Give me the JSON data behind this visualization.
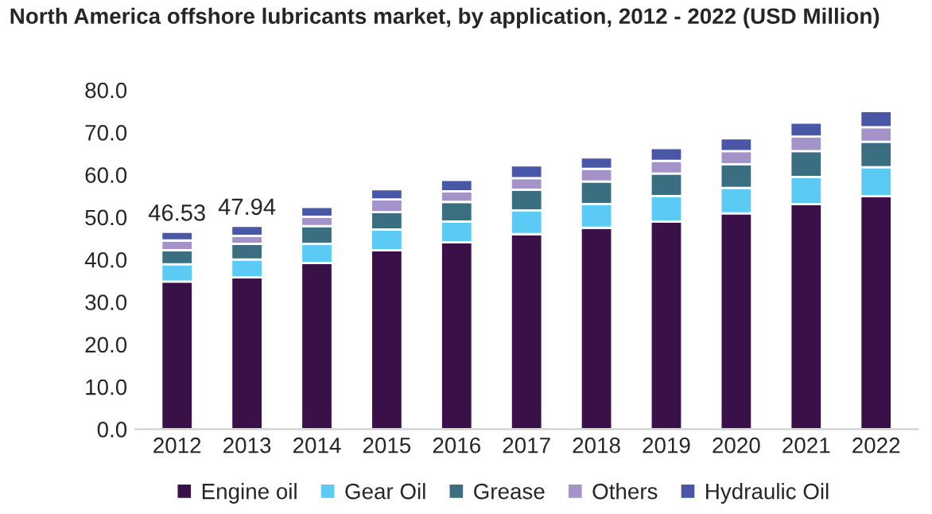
{
  "chart_data": {
    "type": "bar",
    "title": "North America offshore lubricants market, by application, 2012 - 2022 (USD Million)",
    "categories": [
      "2012",
      "2013",
      "2014",
      "2015",
      "2016",
      "2017",
      "2018",
      "2019",
      "2020",
      "2021",
      "2022"
    ],
    "stacked": true,
    "series": [
      {
        "name": "Engine oil",
        "color": "#3a1049",
        "values": [
          34.8,
          35.8,
          39.2,
          42.2,
          44.1,
          46.0,
          47.5,
          49.0,
          50.9,
          53.1,
          55.0
        ]
      },
      {
        "name": "Gear Oil",
        "color": "#5bcaf5",
        "values": [
          4.1,
          4.2,
          4.5,
          4.9,
          4.9,
          5.6,
          5.6,
          6.0,
          6.0,
          6.4,
          6.8
        ]
      },
      {
        "name": "Grease",
        "color": "#3b6e80",
        "values": [
          3.3,
          3.7,
          4.2,
          4.1,
          4.6,
          4.9,
          5.3,
          5.3,
          5.6,
          6.1,
          6.0
        ]
      },
      {
        "name": "Others",
        "color": "#a493c8",
        "values": [
          2.3,
          1.9,
          2.2,
          3.0,
          2.5,
          2.7,
          3.0,
          3.0,
          3.1,
          3.4,
          3.4
        ]
      },
      {
        "name": "Hydraulic Oil",
        "color": "#4a56a6",
        "values": [
          2.03,
          2.34,
          2.3,
          2.4,
          2.7,
          3.0,
          2.7,
          3.0,
          3.0,
          3.3,
          3.8
        ]
      }
    ],
    "totals": [
      "46.53",
      "47.94",
      null,
      null,
      null,
      null,
      null,
      null,
      null,
      null,
      null
    ],
    "ylim": [
      0,
      80
    ],
    "yticks": [
      {
        "value": 0,
        "label": "0.0"
      },
      {
        "value": 10,
        "label": "10.0"
      },
      {
        "value": 20,
        "label": "20.0"
      },
      {
        "value": 30,
        "label": "30.0"
      },
      {
        "value": 40,
        "label": "40.0"
      },
      {
        "value": 50,
        "label": "50.0"
      },
      {
        "value": 60,
        "label": "60.0"
      },
      {
        "value": 70,
        "label": "70.0"
      },
      {
        "value": 80,
        "label": "80.0"
      }
    ],
    "grid": false,
    "legend": "bottom"
  }
}
